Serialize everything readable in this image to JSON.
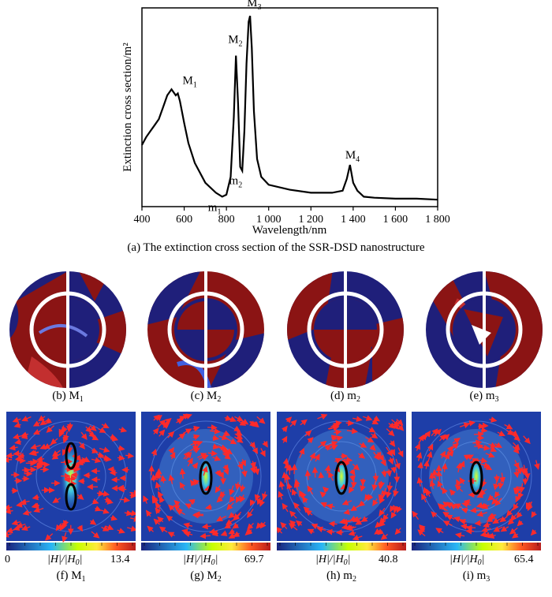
{
  "chart_data": {
    "type": "line",
    "xlabel": "Wavelength/nm",
    "ylabel": "Extinction cross section/m²",
    "xlim": [
      400,
      1800
    ],
    "x_ticks": [
      "400",
      "600",
      "800",
      "1 000",
      "1 200",
      "1 400",
      "1 600",
      "1 800"
    ],
    "x_tick_values": [
      400,
      600,
      800,
      1000,
      1200,
      1400,
      1600,
      1800
    ],
    "series": [
      {
        "x": [
          400,
          420,
          440,
          460,
          480,
          500,
          520,
          540,
          560,
          570,
          580,
          600,
          620,
          650,
          700,
          750,
          780,
          800,
          820,
          835,
          845,
          855,
          865,
          875,
          885,
          895,
          905,
          912,
          920,
          930,
          945,
          965,
          1000,
          1100,
          1200,
          1300,
          1350,
          1370,
          1385,
          1400,
          1420,
          1450,
          1500,
          1600,
          1700,
          1800
        ],
        "y": [
          0.31,
          0.35,
          0.38,
          0.41,
          0.44,
          0.5,
          0.56,
          0.59,
          0.56,
          0.57,
          0.53,
          0.42,
          0.32,
          0.22,
          0.12,
          0.07,
          0.05,
          0.06,
          0.15,
          0.45,
          0.76,
          0.52,
          0.2,
          0.18,
          0.38,
          0.72,
          0.93,
          0.96,
          0.8,
          0.48,
          0.24,
          0.15,
          0.11,
          0.085,
          0.07,
          0.07,
          0.08,
          0.14,
          0.21,
          0.12,
          0.08,
          0.05,
          0.045,
          0.04,
          0.04,
          0.035
        ]
      }
    ],
    "annotations": [
      {
        "base": "M",
        "sub": "1",
        "x": 570,
        "y": 0.57
      },
      {
        "base": "M",
        "sub": "2",
        "x": 845,
        "y": 0.76
      },
      {
        "base": "M",
        "sub": "3",
        "x": 912,
        "y": 0.96
      },
      {
        "base": "M",
        "sub": "4",
        "x": 1385,
        "y": 0.21
      },
      {
        "base": "m",
        "sub": "1",
        "x": 780,
        "y": 0.05
      },
      {
        "base": "m",
        "sub": "2",
        "x": 865,
        "y": 0.2
      }
    ]
  },
  "captions": {
    "a": "(a) The extinction cross section of the SSR-DSD nanostructure",
    "b": {
      "text": "(b) M",
      "sub": "1"
    },
    "c": {
      "text": "(c) M",
      "sub": "2"
    },
    "d": {
      "text": "(d) m",
      "sub": "2"
    },
    "e": {
      "text": "(e) m",
      "sub": "3"
    },
    "f": {
      "text": "(f) M",
      "sub": "1"
    },
    "g": {
      "text": "(g) M",
      "sub": "2"
    },
    "h": {
      "text": "(h) m",
      "sub": "2"
    },
    "i": {
      "text": "(i) m",
      "sub": "3"
    }
  },
  "colorbars": {
    "f": {
      "min": "0",
      "max": "13.4",
      "label": "|H|/|H",
      "label_sub": "0",
      "label_end": "|"
    },
    "g": {
      "max": "69.7",
      "label": "|H|/|H",
      "label_sub": "0",
      "label_end": "|"
    },
    "h": {
      "max": "40.8",
      "label": "|H|/|H",
      "label_sub": "0",
      "label_end": "|"
    },
    "i": {
      "max": "65.4",
      "label": "|H|/|H",
      "label_sub": "0",
      "label_end": "|"
    }
  },
  "colors": {
    "field_red": "#8b1414",
    "field_blue": "#1f1f7a",
    "arrow_red": "#ff2a2a",
    "map_bg": "#1e3ea8"
  }
}
